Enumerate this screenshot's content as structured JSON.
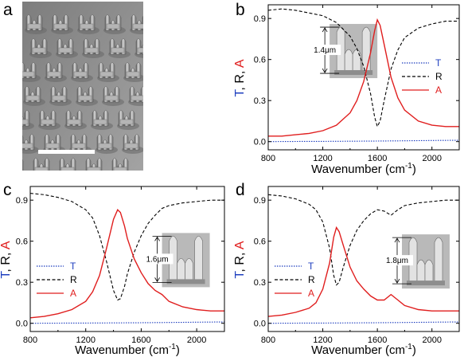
{
  "panels": {
    "a": {
      "letter": "a"
    },
    "b": {
      "letter": "b"
    },
    "c": {
      "letter": "c"
    },
    "d": {
      "letter": "d"
    }
  },
  "chart_data": [
    {
      "id": "b",
      "type": "line",
      "xlabel_main": "Wavenumber (cm",
      "xlabel_sup": "-1",
      "xlabel_close": ")",
      "ylabel_parts": [
        {
          "text": "T",
          "color": "#1f3fbf"
        },
        {
          "text": ", R, ",
          "color": "#000000"
        },
        {
          "text": "A",
          "color": "#e01e1e"
        }
      ],
      "xlim": [
        800,
        2200
      ],
      "ylim": [
        -0.06,
        1.0
      ],
      "xticks": [
        800,
        1200,
        1600,
        2000
      ],
      "xtick_labels": [
        "800",
        "1200",
        "1600",
        "2000"
      ],
      "yticks": [
        0.0,
        0.3,
        0.6,
        0.9
      ],
      "ytick_labels": [
        "0.0",
        "0.3",
        "0.6",
        "0.9"
      ],
      "legend_position": "right",
      "inset_label": "1.4μm",
      "series": [
        {
          "name": "T",
          "color": "#1f3fbf",
          "dash": "1.5,1.5",
          "x": [
            800,
            1000,
            1200,
            1400,
            1600,
            1800,
            2000,
            2200
          ],
          "y": [
            0.0,
            0.001,
            0.002,
            0.003,
            0.004,
            0.006,
            0.008,
            0.01
          ]
        },
        {
          "name": "R",
          "color": "#000000",
          "dash": "4,2.5",
          "x": [
            800,
            900,
            1000,
            1100,
            1200,
            1300,
            1400,
            1450,
            1500,
            1550,
            1580,
            1600,
            1620,
            1650,
            1700,
            1750,
            1800,
            1900,
            2000,
            2100,
            2200
          ],
          "y": [
            0.96,
            0.97,
            0.96,
            0.94,
            0.92,
            0.87,
            0.77,
            0.68,
            0.55,
            0.35,
            0.18,
            0.11,
            0.15,
            0.3,
            0.53,
            0.67,
            0.76,
            0.83,
            0.86,
            0.88,
            0.88
          ]
        },
        {
          "name": "A",
          "color": "#e01e1e",
          "dash": "",
          "x": [
            800,
            900,
            1000,
            1100,
            1200,
            1300,
            1400,
            1450,
            1500,
            1550,
            1580,
            1600,
            1620,
            1650,
            1700,
            1750,
            1800,
            1900,
            2000,
            2100,
            2200
          ],
          "y": [
            0.04,
            0.04,
            0.05,
            0.06,
            0.08,
            0.12,
            0.21,
            0.3,
            0.44,
            0.65,
            0.81,
            0.89,
            0.85,
            0.71,
            0.47,
            0.32,
            0.23,
            0.15,
            0.12,
            0.11,
            0.11
          ]
        }
      ]
    },
    {
      "id": "c",
      "type": "line",
      "xlabel_main": "Wavenumber (cm",
      "xlabel_sup": "-1",
      "xlabel_close": ")",
      "ylabel_parts": [
        {
          "text": "T",
          "color": "#1f3fbf"
        },
        {
          "text": ", R, ",
          "color": "#000000"
        },
        {
          "text": "A",
          "color": "#e01e1e"
        }
      ],
      "xlim": [
        800,
        2200
      ],
      "ylim": [
        -0.06,
        1.0
      ],
      "xticks": [
        800,
        1200,
        1600,
        2000
      ],
      "xtick_labels": [
        "800",
        "1200",
        "1600",
        "2000"
      ],
      "yticks": [
        0.0,
        0.3,
        0.6,
        0.9
      ],
      "ytick_labels": [
        "0.0",
        "0.3",
        "0.6",
        "0.9"
      ],
      "legend_position": "left",
      "inset_label": "1.6μm",
      "series": [
        {
          "name": "T",
          "color": "#1f3fbf",
          "dash": "1.5,1.5",
          "x": [
            800,
            1000,
            1200,
            1400,
            1600,
            1800,
            2000,
            2200
          ],
          "y": [
            0.0,
            0.001,
            0.002,
            0.003,
            0.004,
            0.006,
            0.008,
            0.01
          ]
        },
        {
          "name": "R",
          "color": "#000000",
          "dash": "4,2.5",
          "x": [
            800,
            900,
            1000,
            1100,
            1200,
            1250,
            1300,
            1350,
            1400,
            1430,
            1450,
            1480,
            1500,
            1550,
            1600,
            1650,
            1700,
            1750,
            1800,
            1900,
            2000,
            2100,
            2200
          ],
          "y": [
            0.95,
            0.94,
            0.92,
            0.89,
            0.83,
            0.77,
            0.64,
            0.45,
            0.24,
            0.17,
            0.18,
            0.27,
            0.36,
            0.52,
            0.64,
            0.73,
            0.79,
            0.84,
            0.86,
            0.88,
            0.89,
            0.9,
            0.9
          ]
        },
        {
          "name": "A",
          "color": "#e01e1e",
          "dash": "",
          "x": [
            800,
            900,
            1000,
            1100,
            1200,
            1250,
            1300,
            1350,
            1400,
            1430,
            1450,
            1480,
            1500,
            1550,
            1600,
            1650,
            1700,
            1750,
            1800,
            1900,
            2000,
            2100,
            2200
          ],
          "y": [
            0.04,
            0.05,
            0.07,
            0.1,
            0.16,
            0.23,
            0.35,
            0.55,
            0.76,
            0.83,
            0.81,
            0.71,
            0.62,
            0.47,
            0.37,
            0.29,
            0.24,
            0.21,
            0.16,
            0.12,
            0.1,
            0.09,
            0.09
          ]
        }
      ]
    },
    {
      "id": "d",
      "type": "line",
      "xlabel_main": "Wavenumber (cm",
      "xlabel_sup": "-1",
      "xlabel_close": ")",
      "ylabel_parts": [
        {
          "text": "T",
          "color": "#1f3fbf"
        },
        {
          "text": ", R, ",
          "color": "#000000"
        },
        {
          "text": "A",
          "color": "#e01e1e"
        }
      ],
      "xlim": [
        800,
        2200
      ],
      "ylim": [
        -0.06,
        1.0
      ],
      "xticks": [
        800,
        1200,
        1600,
        2000
      ],
      "xtick_labels": [
        "800",
        "1200",
        "1600",
        "2000"
      ],
      "yticks": [
        0.0,
        0.3,
        0.6,
        0.9
      ],
      "ytick_labels": [
        "0.0",
        "0.3",
        "0.6",
        "0.9"
      ],
      "legend_position": "left",
      "inset_label": "1.8μm",
      "series": [
        {
          "name": "T",
          "color": "#1f3fbf",
          "dash": "1.5,1.5",
          "x": [
            800,
            1000,
            1200,
            1400,
            1600,
            1800,
            2000,
            2200
          ],
          "y": [
            0.0,
            0.001,
            0.002,
            0.003,
            0.004,
            0.006,
            0.008,
            0.01
          ]
        },
        {
          "name": "R",
          "color": "#000000",
          "dash": "4,2.5",
          "x": [
            800,
            900,
            1000,
            1100,
            1150,
            1200,
            1250,
            1280,
            1300,
            1320,
            1350,
            1400,
            1450,
            1500,
            1550,
            1600,
            1650,
            1700,
            1750,
            1800,
            1900,
            2000,
            2100,
            2200
          ],
          "y": [
            0.94,
            0.93,
            0.91,
            0.87,
            0.83,
            0.74,
            0.55,
            0.35,
            0.28,
            0.3,
            0.41,
            0.57,
            0.68,
            0.75,
            0.8,
            0.83,
            0.82,
            0.79,
            0.83,
            0.86,
            0.88,
            0.89,
            0.9,
            0.9
          ]
        },
        {
          "name": "A",
          "color": "#e01e1e",
          "dash": "",
          "x": [
            800,
            900,
            1000,
            1100,
            1150,
            1200,
            1250,
            1280,
            1300,
            1320,
            1350,
            1400,
            1450,
            1500,
            1550,
            1600,
            1650,
            1700,
            1750,
            1800,
            1900,
            2000,
            2100,
            2200
          ],
          "y": [
            0.05,
            0.06,
            0.08,
            0.11,
            0.15,
            0.25,
            0.44,
            0.63,
            0.7,
            0.67,
            0.57,
            0.41,
            0.31,
            0.25,
            0.2,
            0.17,
            0.17,
            0.21,
            0.17,
            0.13,
            0.1,
            0.09,
            0.09,
            0.09
          ]
        }
      ]
    }
  ]
}
